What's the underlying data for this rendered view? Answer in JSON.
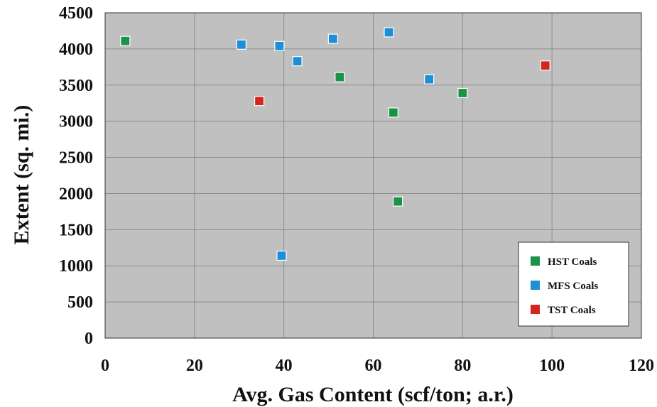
{
  "chart_data": {
    "type": "scatter",
    "title": "",
    "xlabel": "Avg. Gas Content (scf/ton; a.r.)",
    "ylabel": "Extent (sq. mi.)",
    "xlim": [
      0,
      120
    ],
    "ylim": [
      0,
      4500
    ],
    "xticks": [
      "0",
      "20",
      "40",
      "60",
      "80",
      "100",
      "120"
    ],
    "yticks": [
      "0",
      "500",
      "1000",
      "1500",
      "2000",
      "2500",
      "3000",
      "3500",
      "4000",
      "4500"
    ],
    "grid": true,
    "legend_position": "bottom-right",
    "colors": {
      "plot_background": "#c0c0c0",
      "grid": "#8c8c8c",
      "HST Coals": "#1a9347",
      "MFS Coals": "#1d8fd6",
      "TST Coals": "#d4261f"
    },
    "series": [
      {
        "name": "HST Coals",
        "points": [
          {
            "x": 4.5,
            "y": 4110
          },
          {
            "x": 52.5,
            "y": 3610
          },
          {
            "x": 64.5,
            "y": 3120
          },
          {
            "x": 80,
            "y": 3390
          },
          {
            "x": 65.5,
            "y": 1890
          }
        ]
      },
      {
        "name": "MFS Coals",
        "points": [
          {
            "x": 30.5,
            "y": 4060
          },
          {
            "x": 39,
            "y": 4040
          },
          {
            "x": 43,
            "y": 3830
          },
          {
            "x": 51,
            "y": 4140
          },
          {
            "x": 63.5,
            "y": 4230
          },
          {
            "x": 72.5,
            "y": 3580
          },
          {
            "x": 39.5,
            "y": 1140
          }
        ]
      },
      {
        "name": "TST Coals",
        "points": [
          {
            "x": 34.5,
            "y": 3280
          },
          {
            "x": 98.5,
            "y": 3770
          }
        ]
      }
    ]
  }
}
